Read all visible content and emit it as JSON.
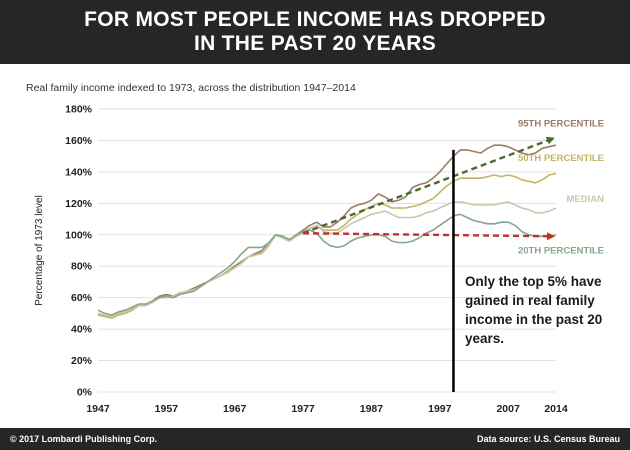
{
  "header": {
    "title_line1": "FOR MOST PEOPLE INCOME HAS DROPPED",
    "title_line2": "IN THE PAST 20 YEARS"
  },
  "subtitle": "Real family income indexed to 1973, across the distribution 1947–2014",
  "note": "Only the top 5% have gained in real family income in the past 20 years.",
  "footer": {
    "copyright": "© 2017 Lombardi Publishing Corp.",
    "source": "Data source: U.S. Census Bureau"
  },
  "chart_data": {
    "type": "line",
    "title": "Real family income indexed to 1973, across the distribution 1947–2014",
    "xlabel": "",
    "ylabel": "Percentage of 1973 level",
    "xlim": [
      1947,
      2014
    ],
    "ylim": [
      0,
      180
    ],
    "x_ticks": [
      1947,
      1957,
      1967,
      1977,
      1987,
      1997,
      2007,
      2014
    ],
    "y_ticks": [
      0,
      20,
      40,
      60,
      80,
      100,
      120,
      140,
      160,
      180
    ],
    "y_tick_suffix": "%",
    "grid": "horizontal",
    "x": [
      1947,
      1948,
      1949,
      1950,
      1951,
      1952,
      1953,
      1954,
      1955,
      1956,
      1957,
      1958,
      1959,
      1960,
      1961,
      1962,
      1963,
      1964,
      1965,
      1966,
      1967,
      1968,
      1969,
      1970,
      1971,
      1972,
      1973,
      1974,
      1975,
      1976,
      1977,
      1978,
      1979,
      1980,
      1981,
      1982,
      1983,
      1984,
      1985,
      1986,
      1987,
      1988,
      1989,
      1990,
      1991,
      1992,
      1993,
      1994,
      1995,
      1996,
      1997,
      1998,
      1999,
      2000,
      2001,
      2002,
      2003,
      2004,
      2005,
      2006,
      2007,
      2008,
      2009,
      2010,
      2011,
      2012,
      2013,
      2014
    ],
    "series": [
      {
        "name": "95TH PERCENTILE",
        "color": "#9b7b68",
        "values": [
          50,
          48,
          48,
          50,
          51,
          53,
          55,
          55,
          58,
          61,
          62,
          61,
          63,
          64,
          66,
          68,
          70,
          72,
          74,
          77,
          80,
          83,
          86,
          88,
          90,
          95,
          100,
          98,
          96,
          100,
          103,
          106,
          108,
          105,
          105,
          108,
          112,
          117,
          119,
          120,
          122,
          126,
          124,
          121,
          122,
          124,
          130,
          132,
          133,
          136,
          140,
          145,
          150,
          154,
          154,
          153,
          152,
          155,
          157,
          157,
          156,
          154,
          152,
          151,
          152,
          155,
          156,
          157
        ],
        "label": "95TH PERCENTILE",
        "label_year": 2000,
        "label_value": 169
      },
      {
        "name": "50TH PERCENTILE",
        "color": "#c4b465",
        "values": [
          49,
          48,
          47,
          49,
          50,
          52,
          55,
          55,
          58,
          60,
          60,
          61,
          63,
          64,
          65,
          67,
          70,
          72,
          74,
          77,
          79,
          82,
          86,
          87,
          89,
          94,
          100,
          99,
          96,
          99,
          102,
          104,
          106,
          103,
          103,
          103,
          106,
          110,
          113,
          116,
          118,
          120,
          119,
          117,
          117,
          117,
          118,
          119,
          121,
          123,
          127,
          131,
          134,
          136,
          136,
          136,
          136,
          137,
          138,
          137,
          138,
          137,
          135,
          134,
          133,
          135,
          138,
          139
        ],
        "label": "50TH PERCENTILE",
        "label_year": 2000,
        "label_value": 147
      },
      {
        "name": "MEDIAN",
        "color": "#c9c7ae",
        "values": [
          50,
          49,
          48,
          50,
          51,
          53,
          55,
          55,
          57,
          60,
          60,
          61,
          63,
          64,
          65,
          67,
          70,
          72,
          74,
          76,
          79,
          82,
          86,
          87,
          88,
          93,
          100,
          98,
          96,
          99,
          101,
          104,
          106,
          102,
          101,
          101,
          104,
          107,
          109,
          111,
          113,
          114,
          115,
          113,
          111,
          111,
          111,
          112,
          114,
          115,
          117,
          119,
          121,
          121,
          120,
          119,
          119,
          119,
          119,
          120,
          121,
          119,
          117,
          116,
          114,
          114,
          115,
          117
        ],
        "label": "MEDIAN",
        "label_year": 2009,
        "label_value": 121
      },
      {
        "name": "20TH PERCENTILE",
        "color": "#86a68a",
        "values": [
          52,
          50,
          49,
          51,
          52,
          54,
          56,
          56,
          58,
          60,
          61,
          60,
          62,
          63,
          64,
          67,
          70,
          73,
          76,
          79,
          83,
          88,
          92,
          92,
          92,
          95,
          100,
          99,
          97,
          100,
          102,
          103,
          101,
          96,
          93,
          92,
          93,
          96,
          98,
          99,
          100,
          100,
          99,
          96,
          95,
          95,
          96,
          98,
          101,
          103,
          106,
          109,
          112,
          113,
          111,
          109,
          108,
          107,
          107,
          108,
          108,
          106,
          102,
          100,
          99,
          99,
          99,
          100
        ],
        "label": "20TH PERCENTILE",
        "label_year": 2001,
        "label_value": 88
      }
    ],
    "trend_arrows": [
      {
        "from": [
          1977,
          101
        ],
        "to": [
          2014,
          161
        ],
        "color": "#4a6a2e"
      },
      {
        "from": [
          1977,
          101
        ],
        "to": [
          2014,
          99
        ],
        "color": "#c0312b"
      }
    ],
    "marker_line": {
      "x": 1999,
      "y_from": 0,
      "y_to": 154,
      "color": "#000000"
    }
  }
}
